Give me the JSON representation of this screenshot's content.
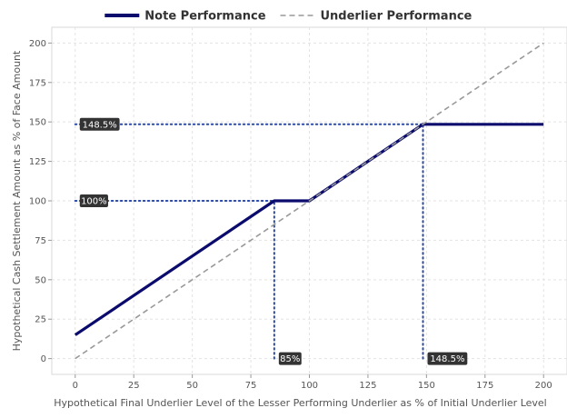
{
  "chart_data": {
    "type": "line",
    "xlabel": "Hypothetical Final Underlier Level of the Lesser Performing Underlier as % of Initial Underlier Level",
    "ylabel": "Hypothetical Cash Settlement Amount as % of Face Amount",
    "xlim": [
      -10,
      210
    ],
    "ylim": [
      -10,
      210
    ],
    "x_ticks": [
      0,
      25,
      50,
      75,
      100,
      125,
      150,
      175,
      200
    ],
    "y_ticks": [
      0,
      25,
      50,
      75,
      100,
      125,
      150,
      175,
      200
    ],
    "grid": true,
    "legend_position": "top",
    "series": [
      {
        "name": "Note Performance",
        "color": "#0b0b6e",
        "style": "solid",
        "points": [
          [
            0,
            15
          ],
          [
            85,
            100
          ],
          [
            100,
            100
          ],
          [
            148.5,
            148.5
          ],
          [
            200,
            148.5
          ]
        ]
      },
      {
        "name": "Underlier Performance",
        "color": "#999999",
        "style": "dashed",
        "points": [
          [
            0,
            0
          ],
          [
            200,
            200
          ]
        ]
      }
    ],
    "reference_lines": [
      {
        "orientation": "horizontal",
        "y": 100,
        "x_from": 0,
        "x_to": 85,
        "color": "#2b4aa8"
      },
      {
        "orientation": "horizontal",
        "y": 148.5,
        "x_from": 0,
        "x_to": 148.5,
        "color": "#2b4aa8"
      },
      {
        "orientation": "vertical",
        "x": 85,
        "y_from": 0,
        "y_to": 100,
        "color": "#2b4aa8"
      },
      {
        "orientation": "vertical",
        "x": 148.5,
        "y_from": 0,
        "y_to": 148.5,
        "color": "#2b4aa8"
      }
    ],
    "annotations": [
      {
        "text": "148.5%",
        "x": 0,
        "y": 148.5
      },
      {
        "text": "100%",
        "x": 0,
        "y": 100
      },
      {
        "text": "85%",
        "x": 85,
        "y": 0
      },
      {
        "text": "148.5%",
        "x": 148.5,
        "y": 0
      }
    ]
  }
}
